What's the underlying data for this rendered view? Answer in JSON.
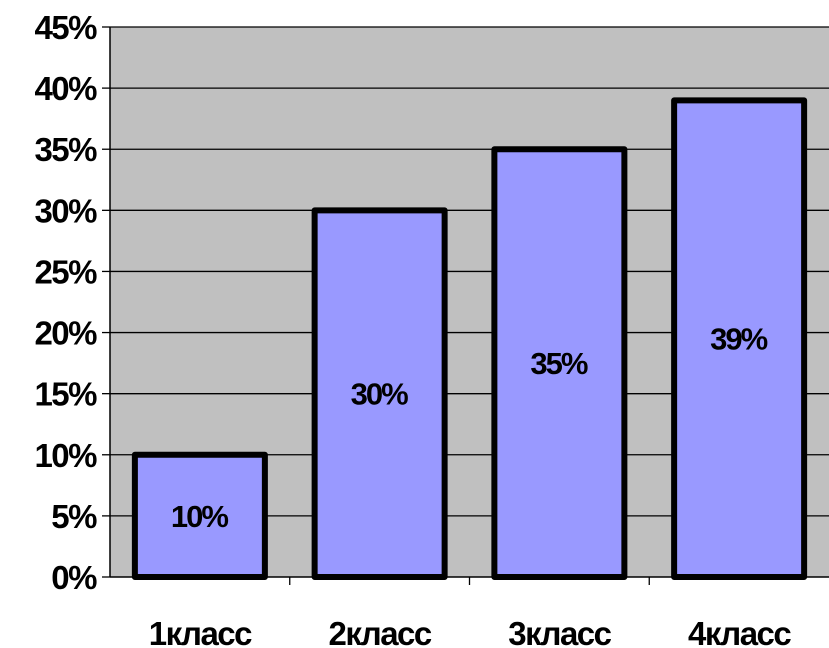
{
  "chart_data": {
    "type": "bar",
    "title": "",
    "xlabel": "",
    "ylabel": "",
    "categories": [
      "1класс",
      "2класс",
      "3класс",
      "4класс"
    ],
    "values": [
      10,
      30,
      35,
      39
    ],
    "data_labels": [
      "10%",
      "30%",
      "35%",
      "39%"
    ],
    "ylim": [
      0,
      45
    ],
    "y_ticks": [
      0,
      5,
      10,
      15,
      20,
      25,
      30,
      35,
      40,
      45
    ],
    "y_tick_labels": [
      "0%",
      "5%",
      "10%",
      "15%",
      "20%",
      "25%",
      "30%",
      "35%",
      "40%",
      "45%"
    ],
    "grid": true,
    "legend": "none",
    "colors": {
      "plot_background": "#c0c0c0",
      "bar_fill": "#9999ff",
      "bar_border": "#000000",
      "gridline": "#000000"
    }
  }
}
